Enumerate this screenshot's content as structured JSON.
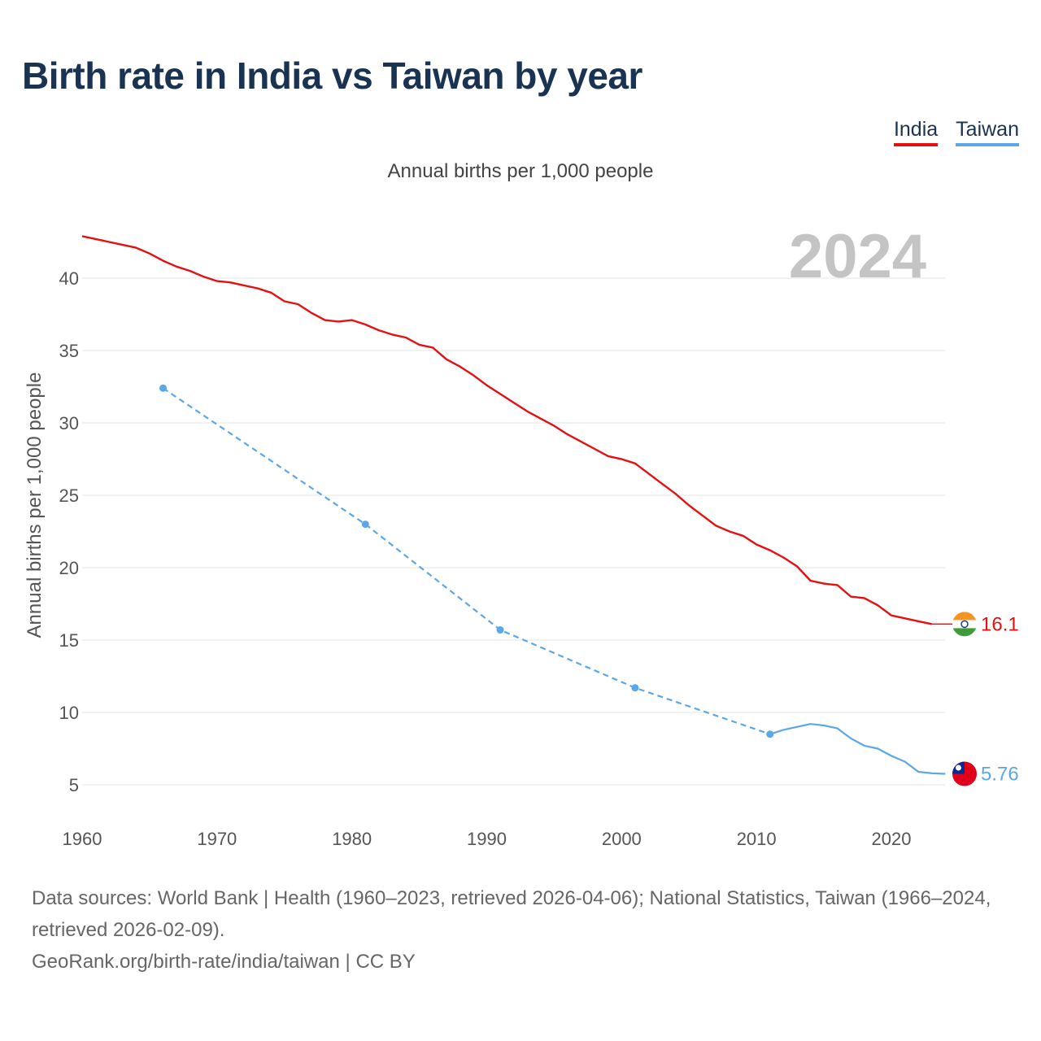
{
  "header": {
    "title": "Birth rate in India vs Taiwan by year",
    "subtitle": "Annual births per 1,000 people"
  },
  "legend": {
    "india": "India",
    "taiwan": "Taiwan"
  },
  "footer": {
    "sources": "Data sources: World Bank | Health (1960–2023, retrieved 2026-04-06); National Statistics, Taiwan (1966–2024, retrieved 2026-02-09).",
    "credit": "GeoRank.org/birth-rate/india/taiwan | CC BY"
  },
  "colors": {
    "india": "#e5100f",
    "taiwan": "#5ba7e7",
    "grid": "#e6e6e6",
    "year": "#c4c4c4"
  },
  "chart_data": {
    "type": "line",
    "title": "Birth rate in India vs Taiwan by year",
    "ylabel": "Annual births per 1,000 people",
    "xlabel": "",
    "xlim": [
      1960,
      2025
    ],
    "ylim": [
      2.5,
      44.5
    ],
    "x_ticks": [
      1960,
      1970,
      1980,
      1990,
      2000,
      2010,
      2020
    ],
    "y_ticks": [
      5,
      10,
      15,
      20,
      25,
      30,
      35,
      40
    ],
    "year_label": "2024",
    "series": [
      {
        "name": "India",
        "color": "#e5100f",
        "end_label": "16.1",
        "end_value": 16.1,
        "points": [
          [
            1960,
            42.9
          ],
          [
            1961,
            42.7
          ],
          [
            1962,
            42.5
          ],
          [
            1963,
            42.3
          ],
          [
            1964,
            42.1
          ],
          [
            1965,
            41.7
          ],
          [
            1966,
            41.2
          ],
          [
            1967,
            40.8
          ],
          [
            1968,
            40.5
          ],
          [
            1969,
            40.1
          ],
          [
            1970,
            39.8
          ],
          [
            1971,
            39.7
          ],
          [
            1972,
            39.5
          ],
          [
            1973,
            39.3
          ],
          [
            1974,
            39.0
          ],
          [
            1975,
            38.4
          ],
          [
            1976,
            38.2
          ],
          [
            1977,
            37.6
          ],
          [
            1978,
            37.1
          ],
          [
            1979,
            37.0
          ],
          [
            1980,
            37.1
          ],
          [
            1981,
            36.8
          ],
          [
            1982,
            36.4
          ],
          [
            1983,
            36.1
          ],
          [
            1984,
            35.9
          ],
          [
            1985,
            35.4
          ],
          [
            1986,
            35.2
          ],
          [
            1987,
            34.4
          ],
          [
            1988,
            33.9
          ],
          [
            1989,
            33.3
          ],
          [
            1990,
            32.6
          ],
          [
            1991,
            32.0
          ],
          [
            1992,
            31.4
          ],
          [
            1993,
            30.8
          ],
          [
            1994,
            30.3
          ],
          [
            1995,
            29.8
          ],
          [
            1996,
            29.2
          ],
          [
            1997,
            28.7
          ],
          [
            1998,
            28.2
          ],
          [
            1999,
            27.7
          ],
          [
            2000,
            27.5
          ],
          [
            2001,
            27.2
          ],
          [
            2002,
            26.5
          ],
          [
            2003,
            25.8
          ],
          [
            2004,
            25.1
          ],
          [
            2005,
            24.3
          ],
          [
            2006,
            23.6
          ],
          [
            2007,
            22.9
          ],
          [
            2008,
            22.5
          ],
          [
            2009,
            22.2
          ],
          [
            2010,
            21.6
          ],
          [
            2011,
            21.2
          ],
          [
            2012,
            20.7
          ],
          [
            2013,
            20.1
          ],
          [
            2014,
            19.1
          ],
          [
            2015,
            18.9
          ],
          [
            2016,
            18.8
          ],
          [
            2017,
            18.0
          ],
          [
            2018,
            17.9
          ],
          [
            2019,
            17.4
          ],
          [
            2020,
            16.7
          ],
          [
            2021,
            16.5
          ],
          [
            2022,
            16.3
          ],
          [
            2023,
            16.1
          ]
        ]
      },
      {
        "name": "Taiwan",
        "color": "#5ba7e7",
        "end_label": "5.76",
        "end_value": 5.76,
        "sparse_points": [
          [
            1966,
            32.4
          ],
          [
            1981,
            23.0
          ],
          [
            1991,
            15.7
          ],
          [
            2001,
            11.7
          ],
          [
            2011,
            8.5
          ]
        ],
        "points": [
          [
            2011,
            8.5
          ],
          [
            2012,
            8.8
          ],
          [
            2013,
            9.0
          ],
          [
            2014,
            9.2
          ],
          [
            2015,
            9.1
          ],
          [
            2016,
            8.9
          ],
          [
            2017,
            8.2
          ],
          [
            2018,
            7.7
          ],
          [
            2019,
            7.5
          ],
          [
            2020,
            7.0
          ],
          [
            2021,
            6.6
          ],
          [
            2022,
            5.9
          ],
          [
            2023,
            5.8
          ],
          [
            2024,
            5.76
          ]
        ]
      }
    ]
  }
}
